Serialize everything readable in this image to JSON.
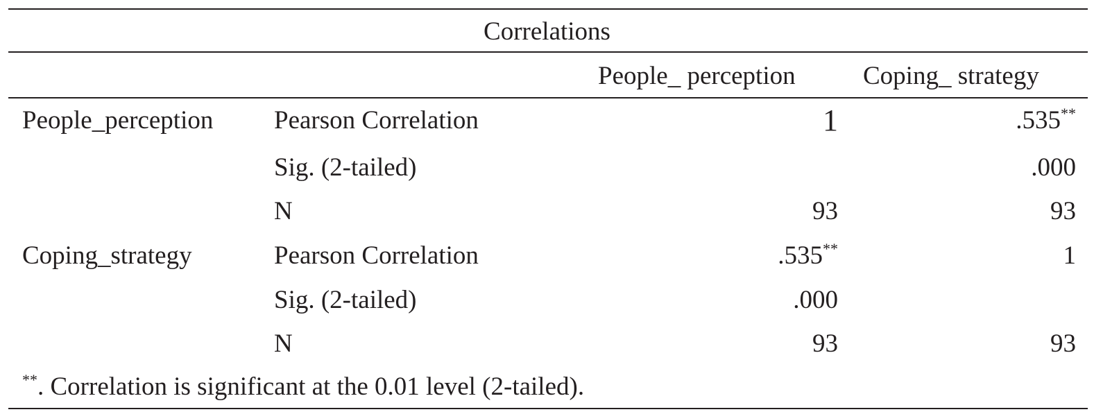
{
  "table": {
    "title": "Correlations",
    "columns": [
      "People_ perception",
      "Coping_ strategy"
    ],
    "blocks": [
      {
        "variable": "People_perception",
        "rows": [
          {
            "stat": "Pearson Correlation",
            "values": [
              "1",
              ".535"
            ],
            "sig_marks": [
              "",
              "**"
            ]
          },
          {
            "stat": "Sig. (2-tailed)",
            "values": [
              "",
              ".000"
            ]
          },
          {
            "stat": "N",
            "values": [
              "93",
              "93"
            ]
          }
        ]
      },
      {
        "variable": "Coping_strategy",
        "rows": [
          {
            "stat": "Pearson Correlation",
            "values": [
              ".535",
              "1"
            ],
            "sig_marks": [
              "**",
              ""
            ]
          },
          {
            "stat": "Sig. (2-tailed)",
            "values": [
              ".000",
              ""
            ]
          },
          {
            "stat": "N",
            "values": [
              "93",
              "93"
            ]
          }
        ]
      }
    ],
    "footnote": {
      "mark": "**",
      "text": ". Correlation is significant at the 0.01 level (2-tailed)."
    }
  }
}
